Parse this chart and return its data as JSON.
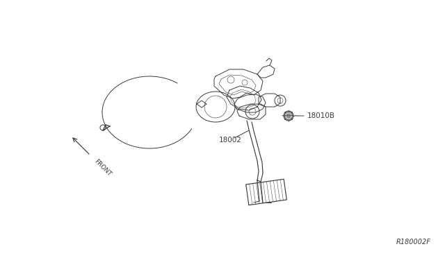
{
  "bg_color": "#ffffff",
  "fig_ref": "R180002F",
  "label_18002": "18002",
  "label_18010B": "18010B",
  "label_front": "FRONT",
  "line_color": "#3a3a3a",
  "fig_w": 6.4,
  "fig_h": 3.72,
  "dpi": 100
}
